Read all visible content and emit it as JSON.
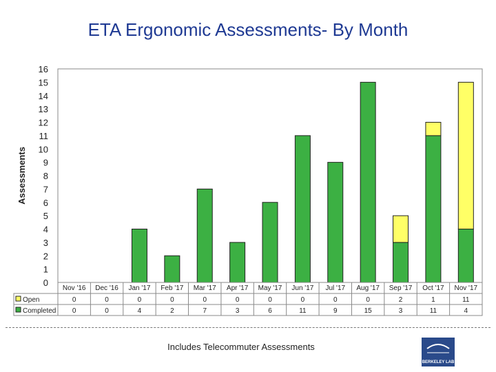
{
  "chart_data": {
    "type": "bar",
    "stacked": true,
    "title": "ETA Ergonomic Assessments- By Month",
    "ylabel": "Assessments",
    "xlabel": "",
    "ylim": [
      0,
      16
    ],
    "yticks": [
      0,
      1,
      2,
      3,
      4,
      5,
      6,
      7,
      8,
      9,
      10,
      11,
      12,
      13,
      14,
      15,
      16
    ],
    "categories": [
      "Nov '16",
      "Dec '16",
      "Jan '17",
      "Feb '17",
      "Mar '17",
      "Apr '17",
      "May '17",
      "Jun '17",
      "Jul '17",
      "Aug '17",
      "Sep '17",
      "Oct '17",
      "Nov '17"
    ],
    "series": [
      {
        "name": "Completed",
        "color": "#3cb043",
        "values": [
          0,
          0,
          4,
          2,
          7,
          3,
          6,
          11,
          9,
          15,
          3,
          11,
          4
        ]
      },
      {
        "name": "Open",
        "color": "#ffff66",
        "values": [
          0,
          0,
          0,
          0,
          0,
          0,
          0,
          0,
          0,
          0,
          2,
          1,
          11
        ]
      }
    ],
    "table_rows": [
      "Open",
      "Completed"
    ],
    "footnote": "Includes Telecommuter Assessments"
  },
  "logo": {
    "text": "BERKELEY LAB"
  }
}
